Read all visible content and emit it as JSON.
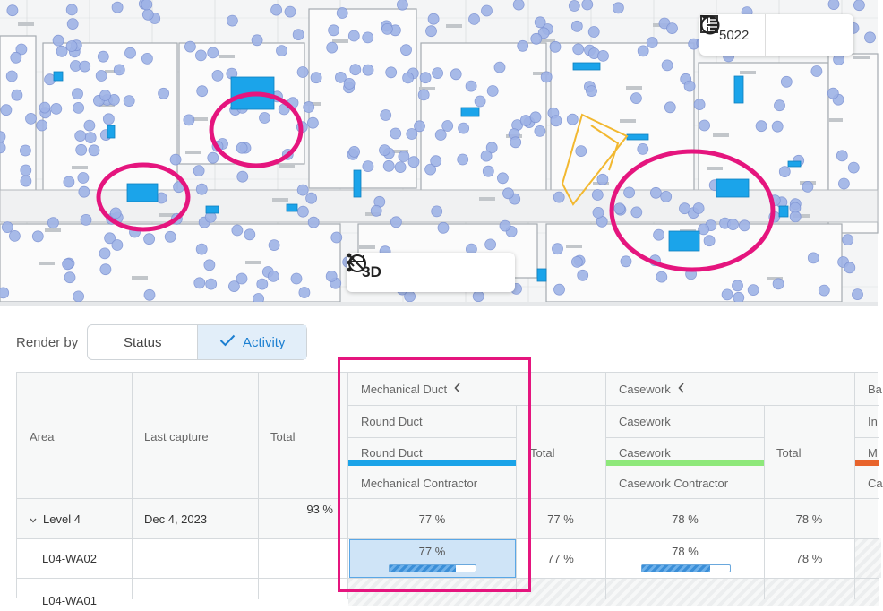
{
  "plan_toolbar": {
    "level_value": "5022",
    "level_icon": "floor-plan-icon",
    "contrast_icon": "contrast-icon"
  },
  "view_toolbar": {
    "mode_3d_label": "3D",
    "back_icon": "return-arrow-icon",
    "hide_icon": "hide-icon",
    "more_icon": "more-vertical-icon"
  },
  "render_by": {
    "label": "Render by",
    "options": [
      "Status",
      "Activity"
    ],
    "selected": "Activity"
  },
  "table": {
    "headers": {
      "area": "Area",
      "last_capture": "Last capture",
      "total": "Total"
    },
    "groups": [
      {
        "title": "Mechanical Duct",
        "sub_category": "Round Duct",
        "activity": "Round Duct",
        "contractor": "Mechanical Contractor",
        "total_label": "Total",
        "color": "#1aa3e8"
      },
      {
        "title": "Casework",
        "sub_category": "Casework",
        "activity": "Casework",
        "contractor": "Casework Contractor",
        "total_label": "Total",
        "color": "#8ee87a"
      },
      {
        "title": "Ba",
        "sub_category": "In",
        "activity": "M",
        "contractor": "Ca",
        "color": "#e8642c"
      }
    ],
    "rows": [
      {
        "area": "Level 4",
        "last_capture": "Dec 4, 2023",
        "total": "93 %",
        "g1_activity": "77 %",
        "g1_total": "77 %",
        "g2_activity": "78 %",
        "g2_total": "78 %"
      },
      {
        "area": "L04-WA02",
        "last_capture": "",
        "total": "",
        "g1_activity": "77 %",
        "g1_progress": 0.77,
        "g1_total": "77 %",
        "g2_activity": "78 %",
        "g2_progress": 0.78,
        "g2_total": "78 %"
      },
      {
        "area": "L04-WA01"
      }
    ]
  }
}
